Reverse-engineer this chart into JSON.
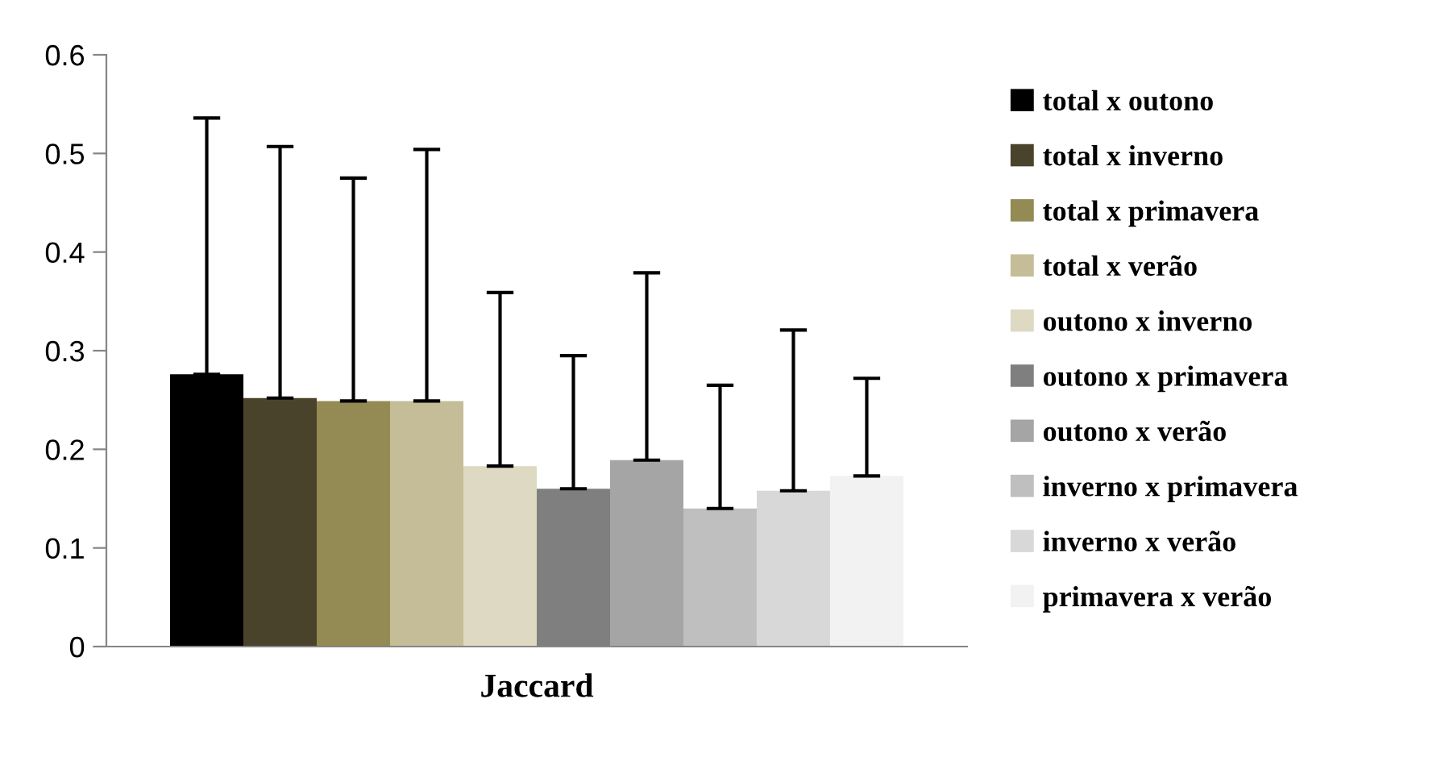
{
  "chart_data": {
    "type": "bar",
    "categories": [
      "Jaccard"
    ],
    "series": [
      {
        "name": "total x outono",
        "color": "#000000",
        "values": [
          0.276
        ],
        "errors": [
          [
            0.276,
            0.536
          ]
        ]
      },
      {
        "name": "total x inverno",
        "color": "#4a432b",
        "values": [
          0.252
        ],
        "errors": [
          [
            0.252,
            0.507
          ]
        ]
      },
      {
        "name": "total x primavera",
        "color": "#948a54",
        "values": [
          0.249
        ],
        "errors": [
          [
            0.249,
            0.475
          ]
        ]
      },
      {
        "name": "total x verão",
        "color": "#c4bd97",
        "values": [
          0.249
        ],
        "errors": [
          [
            0.249,
            0.504
          ]
        ]
      },
      {
        "name": "outono x inverno",
        "color": "#ddd9c3",
        "values": [
          0.183
        ],
        "errors": [
          [
            0.183,
            0.359
          ]
        ]
      },
      {
        "name": "outono x primavera",
        "color": "#7f7f7f",
        "values": [
          0.16
        ],
        "errors": [
          [
            0.16,
            0.295
          ]
        ]
      },
      {
        "name": "outono x verão",
        "color": "#a5a5a5",
        "values": [
          0.189
        ],
        "errors": [
          [
            0.189,
            0.379
          ]
        ]
      },
      {
        "name": "inverno x primavera",
        "color": "#bfbfbf",
        "values": [
          0.14
        ],
        "errors": [
          [
            0.14,
            0.265
          ]
        ]
      },
      {
        "name": "inverno x verão",
        "color": "#d8d8d8",
        "values": [
          0.158
        ],
        "errors": [
          [
            0.158,
            0.321
          ]
        ]
      },
      {
        "name": "primavera x verão",
        "color": "#f2f2f2",
        "values": [
          0.173
        ],
        "errors": [
          [
            0.173,
            0.272
          ]
        ]
      }
    ],
    "ylim": [
      0,
      0.6
    ],
    "yticks": [
      {
        "value": 0,
        "label": "0"
      },
      0.1,
      0.2,
      0.3,
      0.4,
      0.5,
      0.6
    ],
    "grid": false,
    "legend": "right"
  }
}
